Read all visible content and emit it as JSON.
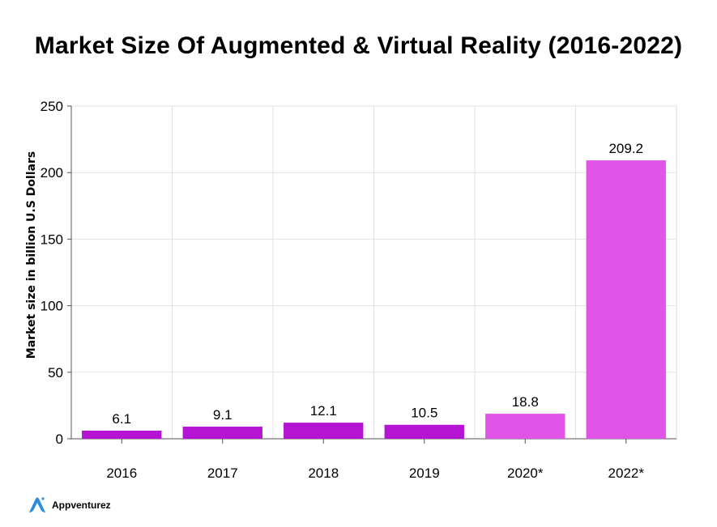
{
  "title": "Market Size Of Augmented & Virtual Reality (2016-2022)",
  "brand": {
    "name": "Appventurez",
    "icon": "appventurez-logo-icon",
    "color": "#2c8de0"
  },
  "chart_data": {
    "type": "bar",
    "title": "Market Size Of Augmented & Virtual Reality (2016-2022)",
    "categories": [
      "2016",
      "2017",
      "2018",
      "2019",
      "2020*",
      "2022*"
    ],
    "values": [
      6.1,
      9.1,
      12.1,
      10.5,
      18.8,
      209.2
    ],
    "value_labels": [
      "6.1",
      "9.1",
      "12.1",
      "10.5",
      "18.8",
      "209.2"
    ],
    "colors": [
      "#b514d3",
      "#b514d3",
      "#b514d3",
      "#b514d3",
      "#e055e8",
      "#e055e8"
    ],
    "xlabel": "",
    "ylabel": "Market size in billion U.S Dollars",
    "ylim": [
      0,
      250
    ],
    "yticks": [
      0,
      50,
      100,
      150,
      200,
      250
    ],
    "ytick_labels": [
      "0",
      "50",
      "100",
      "150",
      "200",
      "250"
    ],
    "grid": true,
    "legend": "none"
  }
}
